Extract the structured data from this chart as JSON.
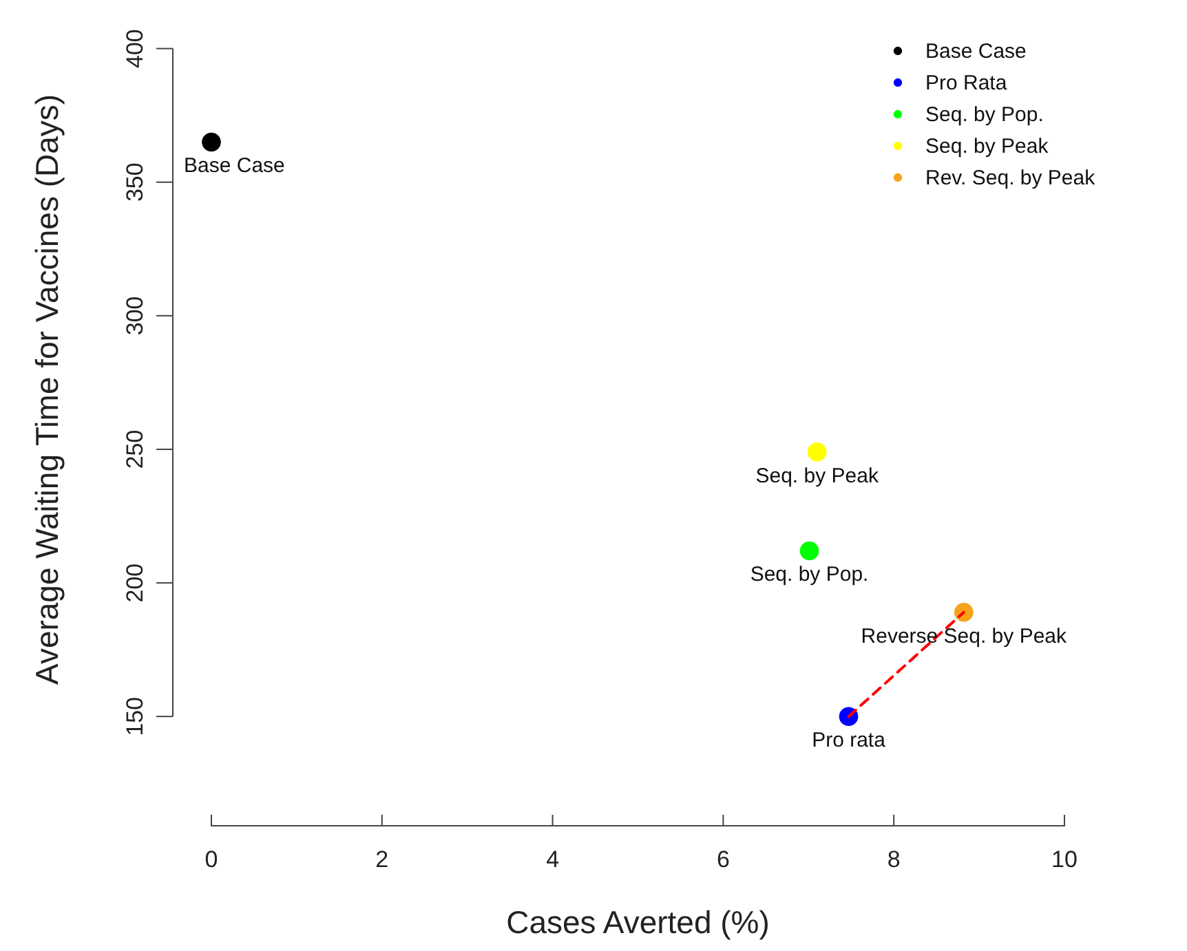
{
  "chart_data": {
    "type": "scatter",
    "xlabel": "Cases Averted (%)",
    "ylabel": "Average Waiting Time for Vaccines (Days)",
    "xlim": [
      0,
      10
    ],
    "ylim": [
      150,
      400
    ],
    "xticks": [
      0,
      2,
      4,
      6,
      8,
      10
    ],
    "yticks": [
      150,
      200,
      250,
      300,
      350,
      400
    ],
    "grid": false,
    "legend": "top right",
    "marker": "circle",
    "series": [
      {
        "name": "Base Case",
        "color": "#000000",
        "x": [
          0
        ],
        "values": [
          365
        ]
      },
      {
        "name": "Pro Rata",
        "color": "#0000ff",
        "x": [
          7.47
        ],
        "values": [
          150
        ]
      },
      {
        "name": "Seq. by Pop.",
        "color": "#00ff00",
        "x": [
          7.01
        ],
        "values": [
          212
        ]
      },
      {
        "name": "Seq. by Peak",
        "color": "#ffff00",
        "x": [
          7.1
        ],
        "values": [
          249
        ]
      },
      {
        "name": "Rev. Seq. by Peak",
        "color": "#f7a21b",
        "x": [
          8.82
        ],
        "values": [
          189
        ]
      },
      {
        "type": "line",
        "color": "#ff0000",
        "line_style": "dashed",
        "marker": "none",
        "x": [
          7.47,
          8.82
        ],
        "values": [
          150,
          189
        ]
      }
    ],
    "annotations": [
      {
        "text": "Base Case",
        "x": 0,
        "y": 365
      },
      {
        "text": "Seq. by Peak",
        "x": 7.1,
        "y": 249
      },
      {
        "text": "Seq. by Pop.",
        "x": 7.01,
        "y": 212
      },
      {
        "text": "Reverse Seq. by Peak",
        "x": 8.82,
        "y": 189
      },
      {
        "text": "Pro rata",
        "x": 7.47,
        "y": 150
      }
    ]
  }
}
